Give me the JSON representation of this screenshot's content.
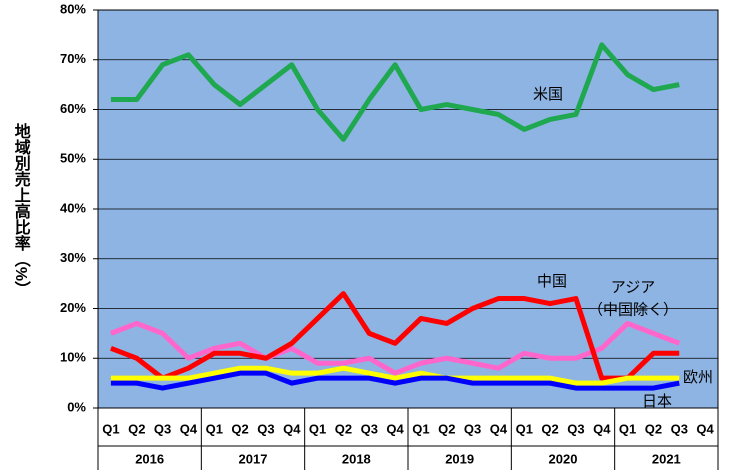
{
  "chart_data": {
    "type": "line",
    "y_label": "地域別売上高比率（%）",
    "categories": [
      "Q1",
      "Q2",
      "Q3",
      "Q4",
      "Q1",
      "Q2",
      "Q3",
      "Q4",
      "Q1",
      "Q2",
      "Q3",
      "Q4",
      "Q1",
      "Q2",
      "Q3",
      "Q4",
      "Q1",
      "Q2",
      "Q3",
      "Q4",
      "Q1",
      "Q2",
      "Q3",
      "Q4"
    ],
    "groups": [
      "2016",
      "2017",
      "2018",
      "2019",
      "2020",
      "2021"
    ],
    "ylim": [
      0,
      80
    ],
    "yticks": [
      {
        "value": 0,
        "label": "0%"
      },
      {
        "value": 10,
        "label": "10%"
      },
      {
        "value": 20,
        "label": "20%"
      },
      {
        "value": 30,
        "label": "30%"
      },
      {
        "value": 40,
        "label": "40%"
      },
      {
        "value": 50,
        "label": "50%"
      },
      {
        "value": 60,
        "label": "60%"
      },
      {
        "value": 70,
        "label": "70%"
      },
      {
        "value": 80,
        "label": "80%"
      }
    ],
    "grid": true,
    "series": [
      {
        "name": "アジア\n（中国除く）",
        "color": "#ff66cc",
        "values": [
          15,
          17,
          15,
          10,
          12,
          13,
          10,
          12,
          9,
          9,
          10,
          7,
          9,
          10,
          9,
          8,
          11,
          10,
          10,
          12,
          17,
          15,
          13,
          null
        ]
      },
      {
        "name": "中国",
        "color": "#ff0000",
        "values": [
          12,
          10,
          6,
          8,
          11,
          11,
          10,
          13,
          18,
          23,
          15,
          13,
          18,
          17,
          20,
          22,
          22,
          21,
          22,
          6,
          6,
          11,
          11,
          null
        ]
      },
      {
        "name": "欧州",
        "color": "#ffff00",
        "values": [
          6,
          6,
          6,
          6,
          7,
          8,
          8,
          7,
          7,
          8,
          7,
          6,
          7,
          6,
          6,
          6,
          6,
          6,
          5,
          5,
          6,
          6,
          6,
          null
        ]
      },
      {
        "name": "日本",
        "color": "#0000ff",
        "values": [
          5,
          5,
          4,
          5,
          6,
          7,
          7,
          5,
          6,
          6,
          6,
          5,
          6,
          6,
          5,
          5,
          5,
          5,
          4,
          4,
          4,
          4,
          5,
          null
        ]
      },
      {
        "name": "米国",
        "color": "#1fa84f",
        "values": [
          62,
          62,
          69,
          71,
          65,
          61,
          65,
          69,
          60,
          54,
          62,
          69,
          60,
          61,
          60,
          59,
          56,
          58,
          59,
          73,
          67,
          64,
          65,
          null
        ]
      }
    ]
  }
}
